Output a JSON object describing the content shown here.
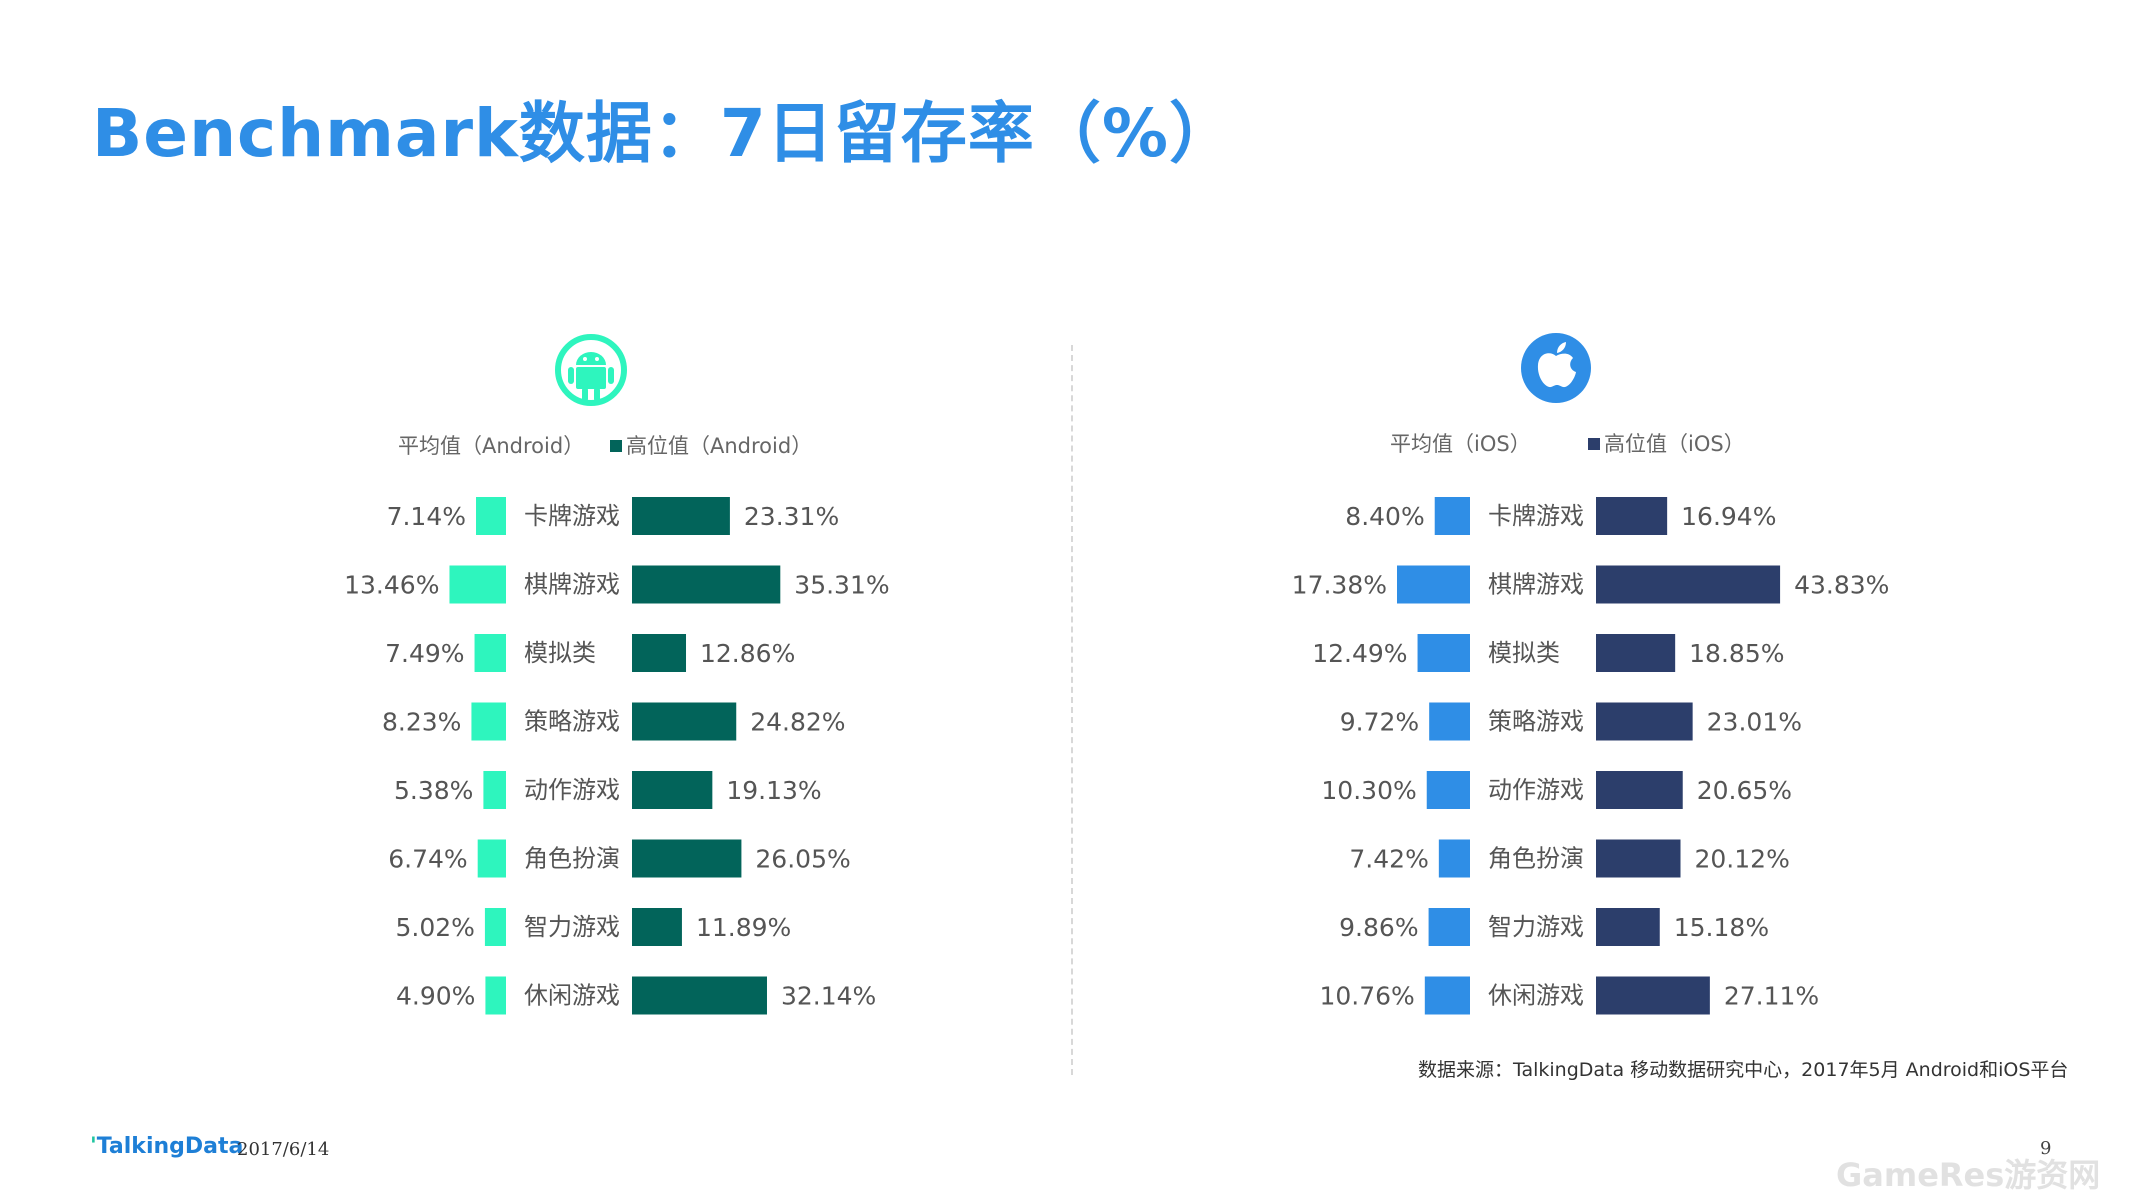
{
  "title": "Benchmark数据：7日留存率（%）",
  "android": {
    "icon": "android-icon",
    "legend_avg": "平均值（Android）",
    "legend_high": "高位值（Android）"
  },
  "ios": {
    "icon": "apple-icon",
    "legend_avg": "平均值（iOS）",
    "legend_high": "高位值（iOS）"
  },
  "colors": {
    "title": "#2f8ee6",
    "android_avg": "#2ef5be",
    "android_high": "#02645a",
    "ios_avg": "#2f8ee6",
    "ios_high": "#2c3e6b"
  },
  "chart_data": [
    {
      "type": "bar",
      "title": "",
      "categories": [
        "卡牌游戏",
        "棋牌游戏",
        "模拟类",
        "策略游戏",
        "动作游戏",
        "角色扮演",
        "智力游戏",
        "休闲游戏"
      ],
      "series": [
        {
          "name": "平均值（Android）",
          "values": [
            7.14,
            13.46,
            7.49,
            8.23,
            5.38,
            6.74,
            5.02,
            4.9
          ],
          "labels": [
            "7.14%",
            "13.46%",
            "7.49%",
            "8.23%",
            "5.38%",
            "6.74%",
            "5.02%",
            "4.90%"
          ]
        },
        {
          "name": "高位值（Android）",
          "values": [
            23.31,
            35.31,
            12.86,
            24.82,
            19.13,
            26.05,
            11.89,
            32.14
          ],
          "labels": [
            "23.31%",
            "35.31%",
            "12.86%",
            "24.82%",
            "19.13%",
            "26.05%",
            "11.89%",
            "32.14%"
          ]
        }
      ],
      "legend": "top"
    },
    {
      "type": "bar",
      "title": "",
      "categories": [
        "卡牌游戏",
        "棋牌游戏",
        "模拟类",
        "策略游戏",
        "动作游戏",
        "角色扮演",
        "智力游戏",
        "休闲游戏"
      ],
      "series": [
        {
          "name": "平均值（iOS）",
          "values": [
            8.4,
            17.38,
            12.49,
            9.72,
            10.3,
            7.42,
            9.86,
            10.76
          ],
          "labels": [
            "8.40%",
            "17.38%",
            "12.49%",
            "9.72%",
            "10.30%",
            "7.42%",
            "9.86%",
            "10.76%"
          ]
        },
        {
          "name": "高位值（iOS）",
          "values": [
            16.94,
            43.83,
            18.85,
            23.01,
            20.65,
            20.12,
            15.18,
            27.11
          ],
          "labels": [
            "16.94%",
            "43.83%",
            "18.85%",
            "23.01%",
            "20.65%",
            "20.12%",
            "15.18%",
            "27.11%"
          ]
        }
      ],
      "legend": "top"
    }
  ],
  "source": "数据来源：TalkingData 移动数据研究中心，2017年5月 Android和iOS平台",
  "footer": {
    "brand": "TalkingData",
    "date": "2017/6/14",
    "page": "9",
    "watermark": "GameRes游资网"
  }
}
